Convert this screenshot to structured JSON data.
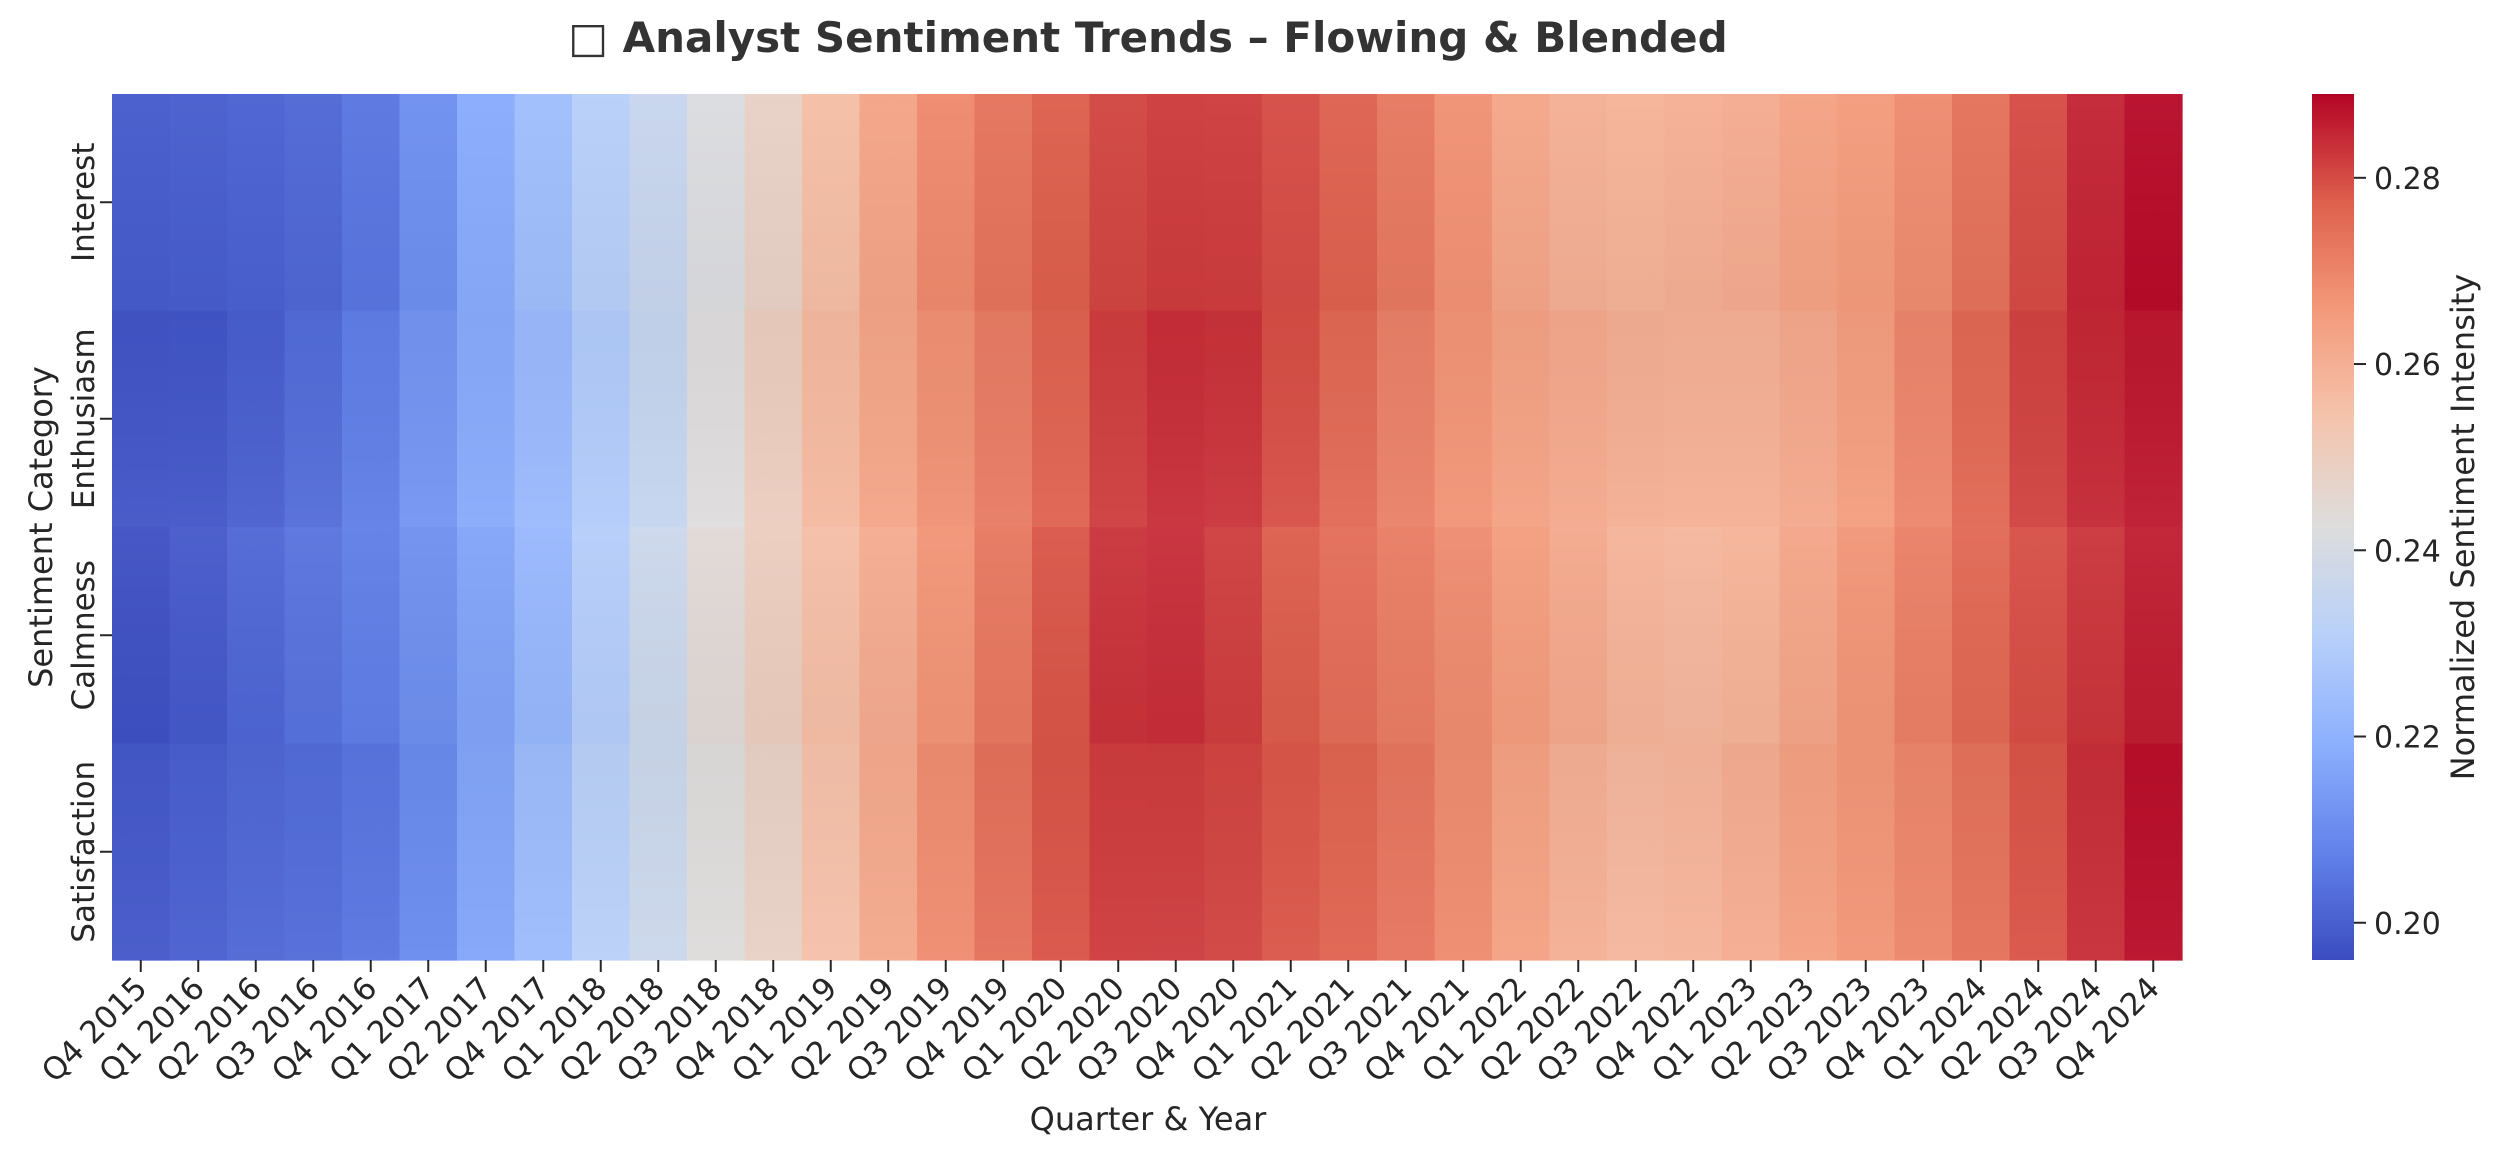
{
  "chart_data": {
    "type": "heatmap",
    "title": "□ Analyst Sentiment Trends – Flowing & Blended",
    "xlabel": "Quarter & Year",
    "ylabel": "Sentiment Category",
    "colorbar_label": "Normalized Sentiment Intensity",
    "colormap": "coolwarm",
    "colorbar_ticks": [
      "0.20",
      "0.22",
      "0.24",
      "0.26",
      "0.28"
    ],
    "vmin": 0.196,
    "vmax": 0.289,
    "x": [
      "Q4 2015",
      "Q1 2016",
      "Q2 2016",
      "Q3 2016",
      "Q4 2016",
      "Q1 2017",
      "Q2 2017",
      "Q4 2017",
      "Q1 2018",
      "Q2 2018",
      "Q3 2018",
      "Q4 2018",
      "Q1 2019",
      "Q2 2019",
      "Q3 2019",
      "Q4 2019",
      "Q1 2020",
      "Q2 2020",
      "Q3 2020",
      "Q4 2020",
      "Q1 2021",
      "Q2 2021",
      "Q3 2021",
      "Q4 2021",
      "Q1 2022",
      "Q2 2022",
      "Q3 2022",
      "Q4 2022",
      "Q1 2023",
      "Q2 2023",
      "Q3 2023",
      "Q4 2023",
      "Q1 2024",
      "Q2 2024",
      "Q3 2024",
      "Q4 2024"
    ],
    "y": [
      "Interest",
      "Enthusiasm",
      "Calmness",
      "Satisfaction"
    ],
    "values": [
      0.198,
      0.199,
      0.201,
      0.203,
      0.206,
      0.211,
      0.217,
      0.223,
      0.23,
      0.236,
      0.243,
      0.249,
      0.256,
      0.262,
      0.268,
      0.273,
      0.278,
      0.282,
      0.283,
      0.282,
      0.279,
      0.276,
      0.272,
      0.268,
      0.264,
      0.261,
      0.259,
      0.259,
      0.26,
      0.263,
      0.266,
      0.27,
      0.275,
      0.28,
      0.284,
      0.287
    ],
    "grid": false
  },
  "colors": {
    "background": "#ffffff",
    "text": "#262626",
    "title": "#333333"
  }
}
